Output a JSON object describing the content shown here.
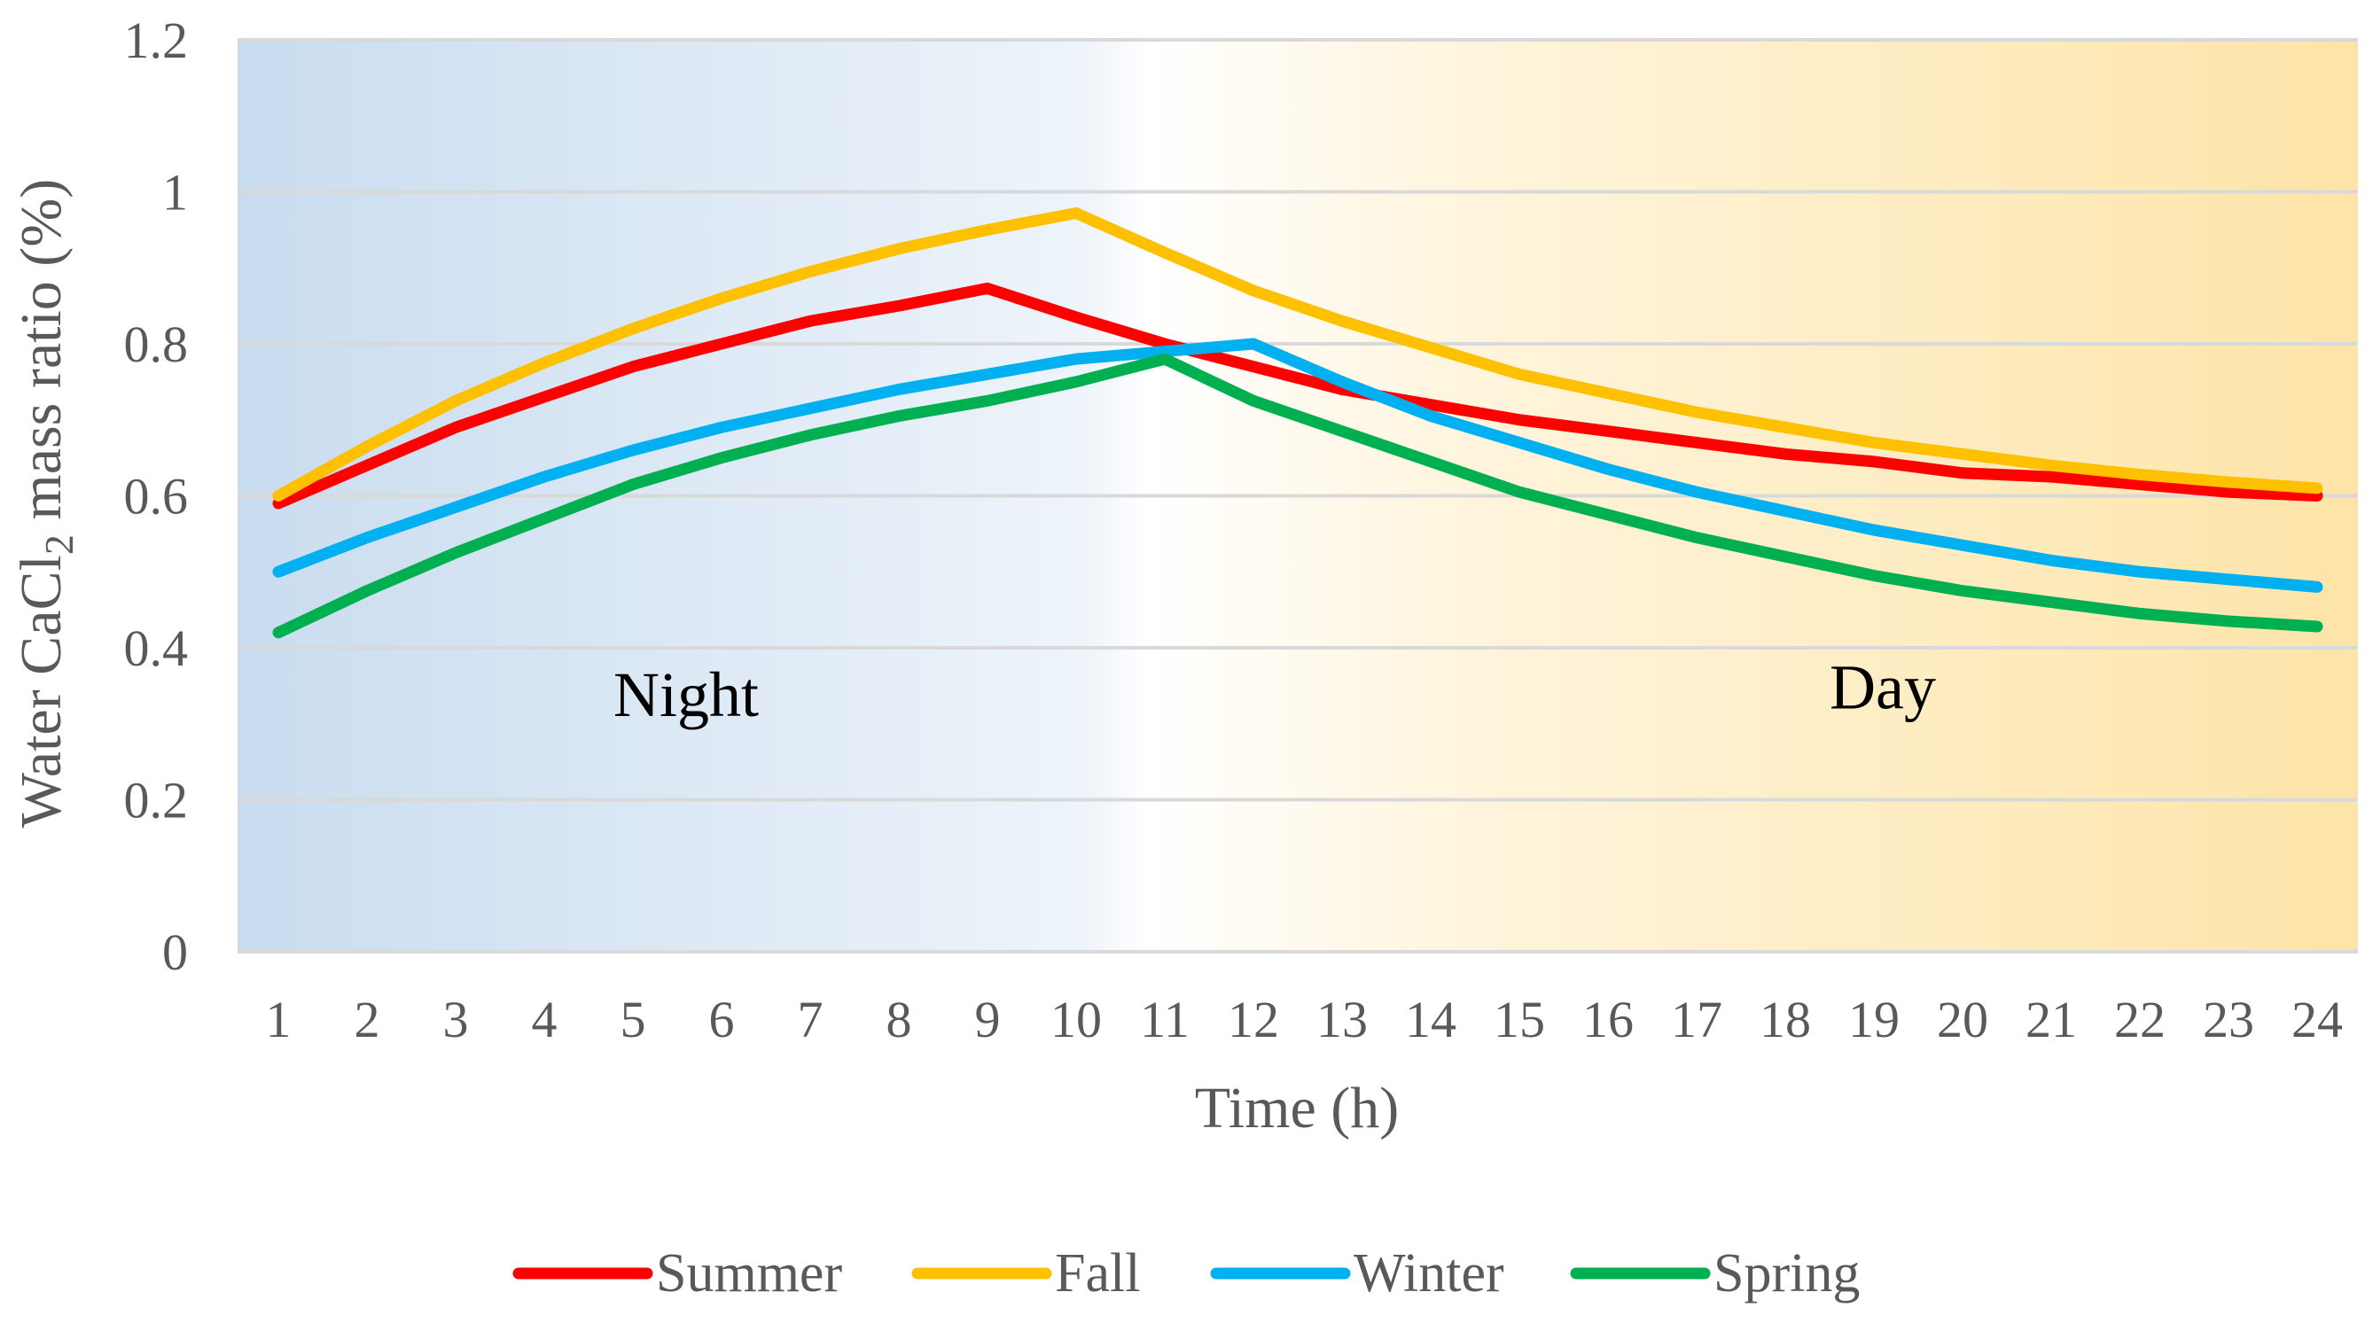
{
  "chart_data": {
    "type": "line",
    "title": "",
    "xlabel": "Time (h)",
    "ylabel": {
      "prefix": "Water CaCl",
      "subscript": "2",
      "suffix": " mass ratio (%)"
    },
    "x": [
      1,
      2,
      3,
      4,
      5,
      6,
      7,
      8,
      9,
      10,
      11,
      12,
      13,
      14,
      15,
      16,
      17,
      18,
      19,
      20,
      21,
      22,
      23,
      24
    ],
    "ylim": [
      0,
      1.2
    ],
    "yticks": [
      0,
      0.2,
      0.4,
      0.6,
      0.8,
      1,
      1.2
    ],
    "ytick_labels": [
      "0",
      "0.2",
      "0.4",
      "0.6",
      "0.8",
      "1",
      "1.2"
    ],
    "grid": true,
    "legend_position": "bottom",
    "background": {
      "left_label": "Night",
      "right_label": "Day",
      "left_color": "#c9dcef",
      "mid_color": "#ffffff",
      "right_color": "#fde4a8"
    },
    "annotations": [
      {
        "text": "Night",
        "x": 5.6,
        "y": 0.31
      },
      {
        "text": "Day",
        "x": 19.1,
        "y": 0.32
      }
    ],
    "series": [
      {
        "name": "Summer",
        "color": "#ff0000",
        "values": [
          0.59,
          0.64,
          0.69,
          0.73,
          0.77,
          0.8,
          0.83,
          0.85,
          0.873,
          0.835,
          0.8,
          0.77,
          0.74,
          0.72,
          0.7,
          0.685,
          0.67,
          0.655,
          0.645,
          0.63,
          0.625,
          0.615,
          0.605,
          0.6
        ]
      },
      {
        "name": "Fall",
        "color": "#ffc000",
        "values": [
          0.6,
          0.665,
          0.725,
          0.775,
          0.82,
          0.86,
          0.895,
          0.925,
          0.95,
          0.972,
          0.92,
          0.87,
          0.83,
          0.795,
          0.76,
          0.735,
          0.71,
          0.69,
          0.67,
          0.655,
          0.64,
          0.628,
          0.618,
          0.61
        ]
      },
      {
        "name": "Winter",
        "color": "#00b0f0",
        "values": [
          0.5,
          0.545,
          0.585,
          0.625,
          0.66,
          0.69,
          0.715,
          0.74,
          0.76,
          0.78,
          0.79,
          0.8,
          0.75,
          0.705,
          0.67,
          0.635,
          0.605,
          0.58,
          0.555,
          0.535,
          0.515,
          0.5,
          0.49,
          0.48
        ]
      },
      {
        "name": "Spring",
        "color": "#00b050",
        "values": [
          0.42,
          0.475,
          0.525,
          0.57,
          0.615,
          0.65,
          0.68,
          0.705,
          0.725,
          0.75,
          0.78,
          0.725,
          0.685,
          0.645,
          0.605,
          0.575,
          0.545,
          0.52,
          0.495,
          0.475,
          0.46,
          0.445,
          0.435,
          0.428
        ]
      }
    ]
  }
}
